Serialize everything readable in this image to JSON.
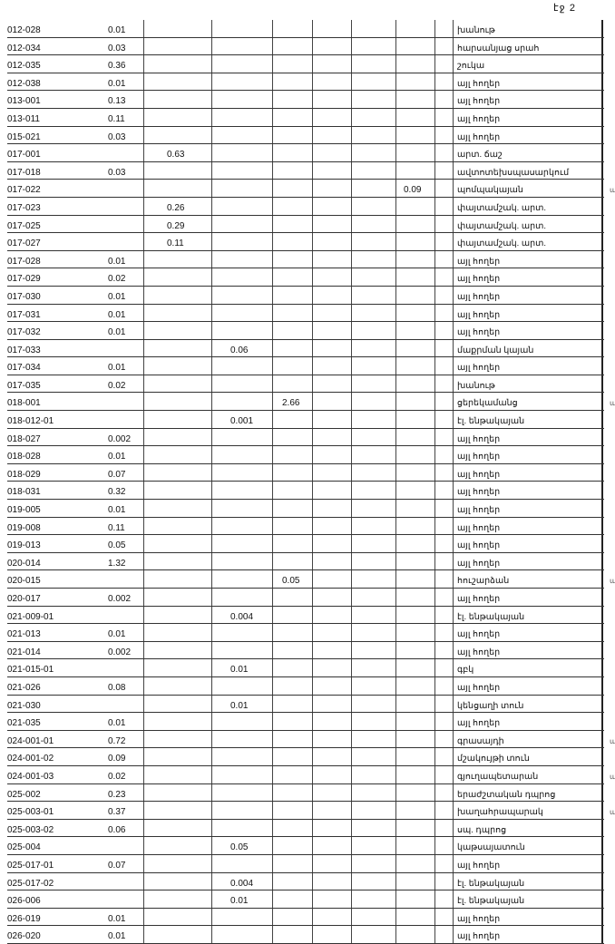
{
  "page_label": "էջ 2",
  "rows": [
    {
      "id": "012-028",
      "col": 1,
      "value": "0.01",
      "use": "խանութ"
    },
    {
      "id": "012-034",
      "col": 1,
      "value": "0.03",
      "use": "հարսանյաց սրահ"
    },
    {
      "id": "012-035",
      "col": 1,
      "value": "0.36",
      "use": "շուկա"
    },
    {
      "id": "012-038",
      "col": 1,
      "value": "0.01",
      "use": "այլ հողեր"
    },
    {
      "id": "013-001",
      "col": 1,
      "value": "0.13",
      "use": "այլ հողեր"
    },
    {
      "id": "013-011",
      "col": 1,
      "value": "0.11",
      "use": "այլ հողեր"
    },
    {
      "id": "015-021",
      "col": 1,
      "value": "0.03",
      "use": "այլ հողեր"
    },
    {
      "id": "017-001",
      "col": 2,
      "value": "0.63",
      "use": "արտ. ճաշ"
    },
    {
      "id": "017-018",
      "col": 1,
      "value": "0.03",
      "use": "ավտոտեխսպասարկում"
    },
    {
      "id": "017-022",
      "col": 7,
      "value": "0.09",
      "use": "պոմպակայան",
      "note": "պմ"
    },
    {
      "id": "017-023",
      "col": 2,
      "value": "0.26",
      "use": "փայտամշակ. արտ."
    },
    {
      "id": "017-025",
      "col": 2,
      "value": "0.29",
      "use": "փայտամշակ. արտ."
    },
    {
      "id": "017-027",
      "col": 2,
      "value": "0.11",
      "use": "փայտամշակ. արտ."
    },
    {
      "id": "017-028",
      "col": 1,
      "value": "0.01",
      "use": "այլ հողեր"
    },
    {
      "id": "017-029",
      "col": 1,
      "value": "0.02",
      "use": "այլ հողեր"
    },
    {
      "id": "017-030",
      "col": 1,
      "value": "0.01",
      "use": "այլ հողեր"
    },
    {
      "id": "017-031",
      "col": 1,
      "value": "0.01",
      "use": "այլ հողեր"
    },
    {
      "id": "017-032",
      "col": 1,
      "value": "0.01",
      "use": "այլ հողեր"
    },
    {
      "id": "017-033",
      "col": 3,
      "value": "0.06",
      "use": "մաքրման կայան"
    },
    {
      "id": "017-034",
      "col": 1,
      "value": "0.01",
      "use": "այլ հողեր"
    },
    {
      "id": "017-035",
      "col": 1,
      "value": "0.02",
      "use": "խանութ"
    },
    {
      "id": "018-001",
      "col": 4,
      "value": "2.66",
      "use": "ցերեկամանց",
      "note": "պմ"
    },
    {
      "id": "018-012-01",
      "col": 3,
      "value": "0.001",
      "use": "էլ. ենթակայան"
    },
    {
      "id": "018-027",
      "col": 1,
      "value": "0.002",
      "use": "այլ հողեր"
    },
    {
      "id": "018-028",
      "col": 1,
      "value": "0.01",
      "use": "այլ հողեր"
    },
    {
      "id": "018-029",
      "col": 1,
      "value": "0.07",
      "use": "այլ հողեր"
    },
    {
      "id": "018-031",
      "col": 1,
      "value": "0.32",
      "use": "այլ հողեր"
    },
    {
      "id": "019-005",
      "col": 1,
      "value": "0.01",
      "use": "այլ հողեր"
    },
    {
      "id": "019-008",
      "col": 1,
      "value": "0.11",
      "use": "այլ հողեր"
    },
    {
      "id": "019-013",
      "col": 1,
      "value": "0.05",
      "use": "այլ հողեր"
    },
    {
      "id": "020-014",
      "col": 1,
      "value": "1.32",
      "use": "այլ հողեր"
    },
    {
      "id": "020-015",
      "col": 4,
      "value": "0.05",
      "use": "հուշարձան",
      "note": "պմ"
    },
    {
      "id": "020-017",
      "col": 1,
      "value": "0.002",
      "use": "այլ հողեր"
    },
    {
      "id": "021-009-01",
      "col": 3,
      "value": "0.004",
      "use": "էլ. ենթակայան"
    },
    {
      "id": "021-013",
      "col": 1,
      "value": "0.01",
      "use": "այլ հողեր"
    },
    {
      "id": "021-014",
      "col": 1,
      "value": "0.002",
      "use": "այլ հողեր"
    },
    {
      "id": "021-015-01",
      "col": 3,
      "value": "0.01",
      "use": "գբկ"
    },
    {
      "id": "021-026",
      "col": 1,
      "value": "0.08",
      "use": "այլ հողեր"
    },
    {
      "id": "021-030",
      "col": 3,
      "value": "0.01",
      "use": "կենցաղի տուն"
    },
    {
      "id": "021-035",
      "col": 1,
      "value": "0.01",
      "use": "այլ հողեր"
    },
    {
      "id": "024-001-01",
      "col": 1,
      "value": "0.72",
      "use": "գրասայդի",
      "note": "պմ"
    },
    {
      "id": "024-001-02",
      "col": 1,
      "value": "0.09",
      "use": "մշակույթի տուն"
    },
    {
      "id": "024-001-03",
      "col": 1,
      "value": "0.02",
      "use": "գյուղապետարան",
      "note": "պմ"
    },
    {
      "id": "025-002",
      "col": 1,
      "value": "0.23",
      "use": "երաժշտական դպրոց"
    },
    {
      "id": "025-003-01",
      "col": 1,
      "value": "0.37",
      "use": "խաղահրապարակ",
      "note": "պմ"
    },
    {
      "id": "025-003-02",
      "col": 1,
      "value": "0.06",
      "use": "սպ. դպրոց"
    },
    {
      "id": "025-004",
      "col": 3,
      "value": "0.05",
      "use": "կաթսայատուն"
    },
    {
      "id": "025-017-01",
      "col": 1,
      "value": "0.07",
      "use": "այլ հողեր"
    },
    {
      "id": "025-017-02",
      "col": 3,
      "value": "0.004",
      "use": "էլ. ենթակայան"
    },
    {
      "id": "026-006",
      "col": 3,
      "value": "0.01",
      "use": "էլ. ենթակայան"
    },
    {
      "id": "026-019",
      "col": 1,
      "value": "0.01",
      "use": "այլ հողեր"
    },
    {
      "id": "026-020",
      "col": 1,
      "value": "0.01",
      "use": "այլ հողեր"
    }
  ]
}
